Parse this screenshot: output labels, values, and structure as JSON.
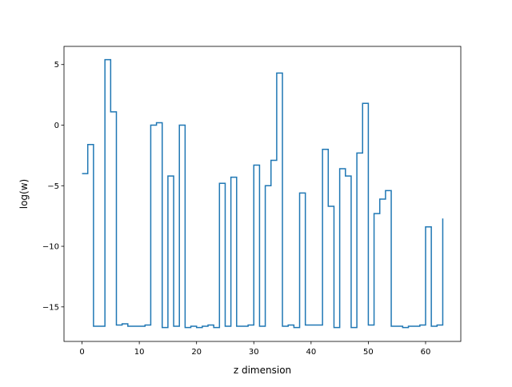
{
  "chart_data": {
    "type": "line",
    "drawstyle": "steps-post",
    "title": "",
    "xlabel": "z dimension",
    "ylabel": "log(w)",
    "xlim": [
      -3.15,
      66.15
    ],
    "ylim": [
      -17.85,
      6.5
    ],
    "grid": false,
    "legend": "none",
    "colors": {
      "line": "#1f77b4",
      "axes": "#000000",
      "background": "#ffffff"
    },
    "xticks": [
      0,
      10,
      20,
      30,
      40,
      50,
      60
    ],
    "xtick_labels": [
      "0",
      "10",
      "20",
      "30",
      "40",
      "50",
      "60"
    ],
    "yticks": [
      5,
      0,
      -5,
      -10,
      -15
    ],
    "ytick_labels": [
      "5",
      "0",
      "−5",
      "−10",
      "−15"
    ],
    "series": [
      {
        "x": [
          0,
          1,
          2,
          3,
          4,
          5,
          6,
          7,
          8,
          9,
          10,
          11,
          12,
          13,
          14,
          15,
          16,
          17,
          18,
          19,
          20,
          21,
          22,
          23,
          24,
          25,
          26,
          27,
          28,
          29,
          30,
          31,
          32,
          33,
          34,
          35,
          36,
          37,
          38,
          39,
          40,
          41,
          42,
          43,
          44,
          45,
          46,
          47,
          48,
          49,
          50,
          51,
          52,
          53,
          54,
          55,
          56,
          57,
          58,
          59,
          60,
          61,
          62,
          63
        ],
        "values": [
          -4.0,
          -1.6,
          -16.6,
          -16.6,
          5.4,
          1.1,
          -16.5,
          -16.4,
          -16.6,
          -16.6,
          -16.6,
          -16.5,
          0.0,
          0.2,
          -16.7,
          -4.2,
          -16.6,
          0.0,
          -16.7,
          -16.6,
          -16.7,
          -16.6,
          -16.5,
          -16.7,
          -4.8,
          -16.6,
          -4.3,
          -16.6,
          -16.6,
          -16.5,
          -3.3,
          -16.6,
          -5.0,
          -2.9,
          4.3,
          -16.6,
          -16.5,
          -16.7,
          -5.6,
          -16.5,
          -16.5,
          -16.5,
          -2.0,
          -6.7,
          -16.7,
          -3.6,
          -4.2,
          -16.7,
          -2.3,
          1.8,
          -16.5,
          -7.3,
          -6.1,
          -5.4,
          -16.6,
          -16.6,
          -16.7,
          -16.6,
          -16.6,
          -16.5,
          -8.4,
          -16.6,
          -16.5,
          -7.7
        ]
      }
    ]
  }
}
